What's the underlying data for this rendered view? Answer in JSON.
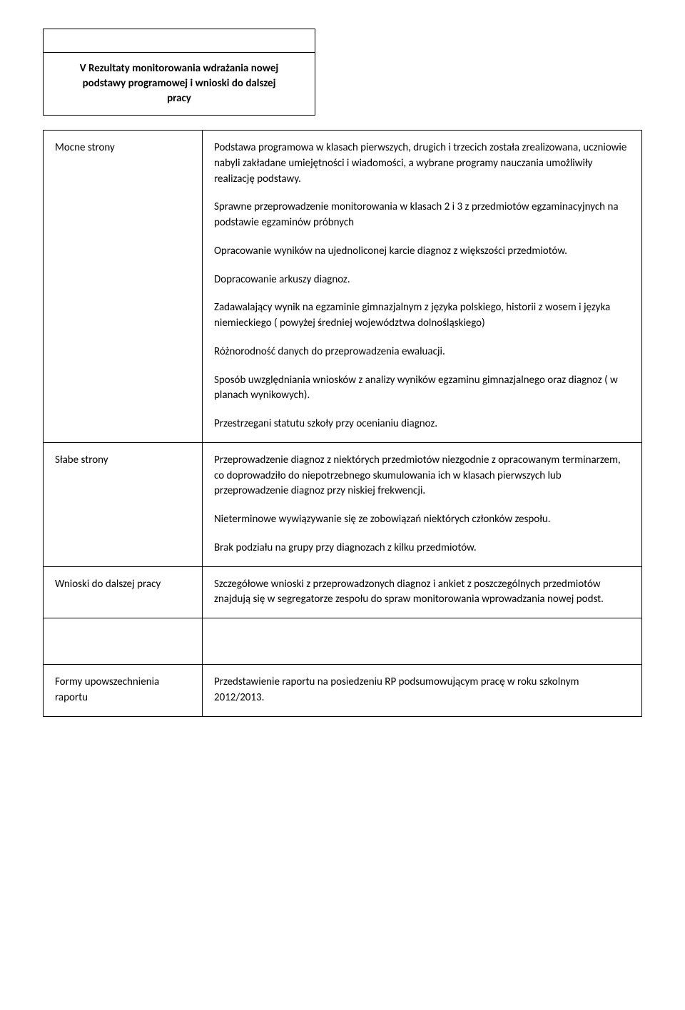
{
  "header": {
    "title_line1": "V Rezultaty monitorowania wdrażania nowej",
    "title_line2": "podstawy programowej i wnioski do dalszej",
    "title_line3": "pracy"
  },
  "rows": {
    "mocne": {
      "label": "Mocne strony",
      "p1": "Podstawa programowa w klasach pierwszych, drugich i trzecich została zrealizowana, uczniowie nabyli zakładane umiejętności i wiadomości, a wybrane programy nauczania umożliwiły realizację podstawy.",
      "p2": "Sprawne przeprowadzenie monitorowania w klasach 2 i 3 z przedmiotów egzaminacyjnych na podstawie egzaminów próbnych",
      "p3": "Opracowanie wyników na ujednoliconej karcie diagnoz z większości przedmiotów.",
      "p4": "Dopracowanie arkuszy diagnoz.",
      "p5": "Zadawalający  wynik na egzaminie gimnazjalnym z języka polskiego, historii z wosem i języka niemieckiego ( powyżej średniej województwa dolnośląskiego)",
      "p6": "Różnorodność danych do przeprowadzenia ewaluacji.",
      "p7": "Sposób uwzględniania wniosków z analizy wyników egzaminu gimnazjalnego oraz diagnoz  ( w planach wynikowych).",
      "p8": "Przestrzegani statutu szkoły przy ocenianiu diagnoz."
    },
    "slabe": {
      "label": "Słabe strony",
      "p1": "Przeprowadzenie diagnoz z niektórych przedmiotów niezgodnie z opracowanym terminarzem, co doprowadziło do niepotrzebnego skumulowania ich w klasach pierwszych lub przeprowadzenie diagnoz przy niskiej frekwencji.",
      "p2": "Nieterminowe  wywiązywanie się ze zobowiązań niektórych członków zespołu.",
      "p3": "Brak podziału na grupy przy diagnozach z kilku przedmiotów."
    },
    "wnioski": {
      "label": "Wnioski do dalszej pracy",
      "p1": "Szczegółowe wnioski z przeprowadzonych diagnoz i  ankiet z poszczególnych przedmiotów znajdują się w segregatorze zespołu do spraw monitorowania wprowadzania nowej podst."
    },
    "formy": {
      "label_line1": "Formy upowszechnienia",
      "label_line2": "raportu",
      "p1": "Przedstawienie raportu na posiedzeniu RP podsumowującym pracę w roku szkolnym 2012/2013."
    }
  }
}
